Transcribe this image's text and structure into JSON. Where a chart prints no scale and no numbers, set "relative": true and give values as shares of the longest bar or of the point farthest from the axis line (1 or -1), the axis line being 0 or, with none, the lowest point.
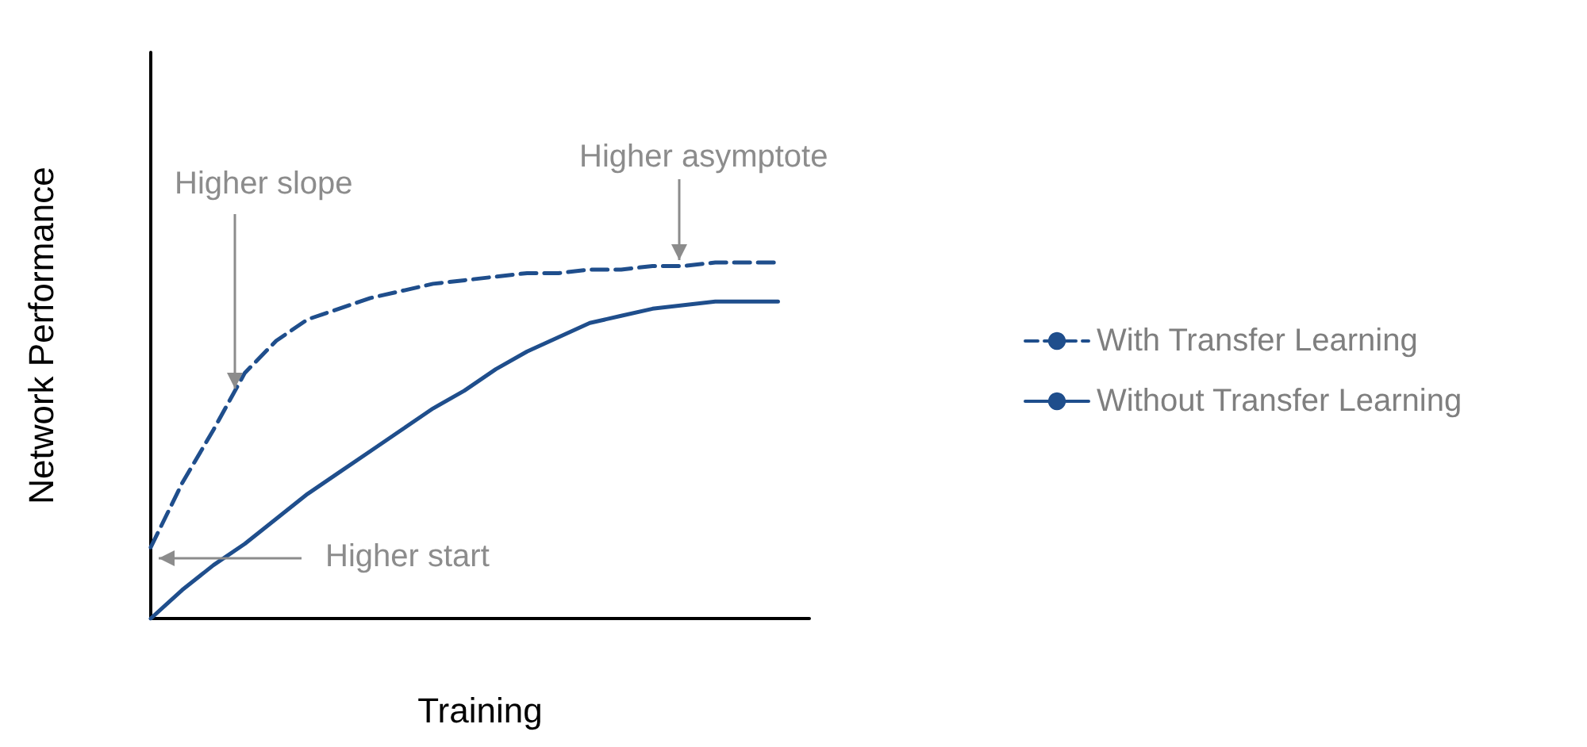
{
  "chart_data": {
    "type": "line",
    "relative": true,
    "xlabel": "Training",
    "ylabel": "Network Performance",
    "legend": "right",
    "categories": [
      null,
      null,
      null,
      null,
      null,
      null,
      null,
      null,
      null,
      null,
      null,
      null,
      null,
      null,
      null,
      null,
      null,
      null,
      null,
      null,
      null,
      null
    ],
    "series": [
      {
        "name": "With Transfer Learning",
        "color": "#1f4e8c",
        "line_style": "dashed",
        "values": [
          0.2,
          0.38,
          0.53,
          0.69,
          0.78,
          0.84,
          0.87,
          0.9,
          0.92,
          0.94,
          0.95,
          0.96,
          0.97,
          0.97,
          0.98,
          0.98,
          0.99,
          0.99,
          1,
          1,
          1,
          null
        ]
      },
      {
        "name": "Without Transfer Learning",
        "color": "#1f4e8c",
        "line_style": "solid",
        "values": [
          0,
          0.08,
          0.15,
          0.21,
          0.28,
          0.35,
          0.41,
          0.47,
          0.53,
          0.59,
          0.64,
          0.7,
          0.75,
          0.79,
          0.83,
          0.85,
          0.87,
          0.88,
          0.89,
          0.89,
          0.89,
          null
        ]
      }
    ],
    "annotations": [
      "Higher slope",
      "Higher asymptote",
      "Higher start"
    ]
  }
}
